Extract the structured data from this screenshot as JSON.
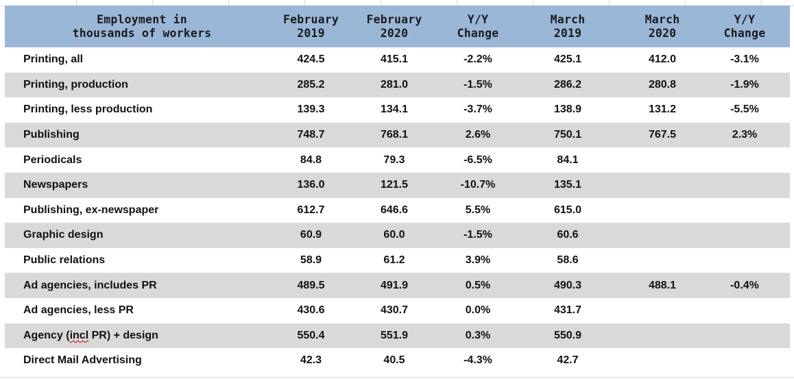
{
  "table": {
    "headers": [
      "Employment in\nthousands of workers",
      "February\n2019",
      "February\n2020",
      "Y/Y\nChange",
      "March\n2019",
      "March\n2020",
      "Y/Y\nChange"
    ],
    "rows": [
      {
        "label_pre": "Printing, all",
        "label_flag": "",
        "label_post": "",
        "cells": [
          "424.5",
          "415.1",
          "-2.2%",
          "425.1",
          "412.0",
          "-3.1%"
        ]
      },
      {
        "label_pre": "Printing, production",
        "label_flag": "",
        "label_post": "",
        "cells": [
          "285.2",
          "281.0",
          "-1.5%",
          "286.2",
          "280.8",
          "-1.9%"
        ]
      },
      {
        "label_pre": "Printing, less production",
        "label_flag": "",
        "label_post": "",
        "cells": [
          "139.3",
          "134.1",
          "-3.7%",
          "138.9",
          "131.2",
          "-5.5%"
        ]
      },
      {
        "label_pre": "Publishing",
        "label_flag": "",
        "label_post": "",
        "cells": [
          "748.7",
          "768.1",
          "2.6%",
          "750.1",
          "767.5",
          "2.3%"
        ]
      },
      {
        "label_pre": "Periodicals",
        "label_flag": "",
        "label_post": "",
        "cells": [
          "84.8",
          "79.3",
          "-6.5%",
          "84.1",
          "",
          ""
        ]
      },
      {
        "label_pre": "Newspapers",
        "label_flag": "",
        "label_post": "",
        "cells": [
          "136.0",
          "121.5",
          "-10.7%",
          "135.1",
          "",
          ""
        ]
      },
      {
        "label_pre": "Publishing, ex-newspaper",
        "label_flag": "",
        "label_post": "",
        "cells": [
          "612.7",
          "646.6",
          "5.5%",
          "615.0",
          "",
          ""
        ]
      },
      {
        "label_pre": "Graphic design",
        "label_flag": "",
        "label_post": "",
        "cells": [
          "60.9",
          "60.0",
          "-1.5%",
          "60.6",
          "",
          ""
        ]
      },
      {
        "label_pre": "Public relations",
        "label_flag": "",
        "label_post": "",
        "cells": [
          "58.9",
          "61.2",
          "3.9%",
          "58.6",
          "",
          ""
        ]
      },
      {
        "label_pre": "Ad agencies, includes PR",
        "label_flag": "",
        "label_post": "",
        "cells": [
          "489.5",
          "491.9",
          "0.5%",
          "490.3",
          "488.1",
          "-0.4%"
        ]
      },
      {
        "label_pre": "Ad agencies, less PR",
        "label_flag": "",
        "label_post": "",
        "cells": [
          "430.6",
          "430.7",
          "0.0%",
          "431.7",
          "",
          ""
        ]
      },
      {
        "label_pre": "Agency (",
        "label_flag": "incl",
        "label_post": " PR) + design",
        "cells": [
          "550.4",
          "551.9",
          "0.3%",
          "550.9",
          "",
          ""
        ]
      },
      {
        "label_pre": "Direct Mail Advertising",
        "label_flag": "",
        "label_post": "",
        "cells": [
          "42.3",
          "40.5",
          "-4.3%",
          "42.7",
          "",
          ""
        ]
      }
    ]
  },
  "colors": {
    "header_fill": "#9ab7d8",
    "row_shade": "#d9d9d9",
    "spellcheck_underline": "#d00000"
  }
}
